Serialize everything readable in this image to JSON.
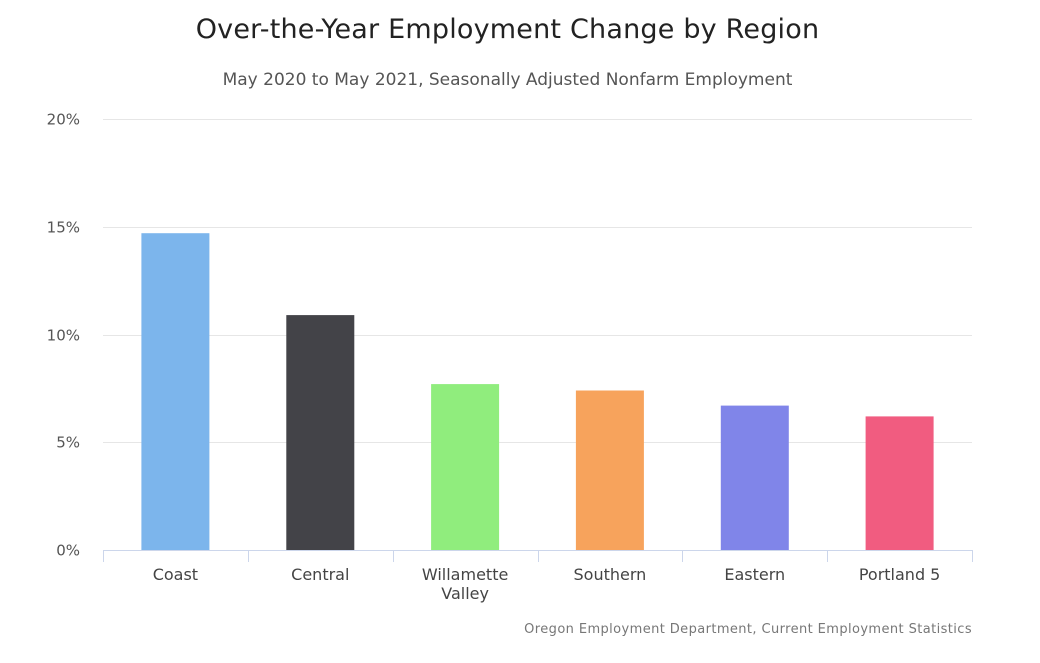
{
  "chart_data": {
    "type": "bar",
    "title": "Over-the-Year Employment Change by Region",
    "subtitle": "May 2020 to May 2021, Seasonally Adjusted Nonfarm Employment",
    "credit": "Oregon Employment Department, Current Employment Statistics",
    "categories": [
      "Coast",
      "Central",
      "Willamette Valley",
      "Southern",
      "Eastern",
      "Portland 5"
    ],
    "category_lines": [
      [
        "Coast"
      ],
      [
        "Central"
      ],
      [
        "Willamette",
        "Valley"
      ],
      [
        "Southern"
      ],
      [
        "Eastern"
      ],
      [
        "Portland 5"
      ]
    ],
    "values": [
      14.7,
      10.9,
      7.7,
      7.4,
      6.7,
      6.2
    ],
    "colors": [
      "#7cb5ec",
      "#434348",
      "#90ed7d",
      "#f7a35c",
      "#8085e9",
      "#f15c80"
    ],
    "ylim": [
      0,
      20
    ],
    "yticks": [
      0,
      5,
      10,
      15,
      20
    ],
    "ytick_labels": [
      "0%",
      "5%",
      "10%",
      "15%",
      "20%"
    ],
    "xlabel": "",
    "ylabel": "",
    "grid": true,
    "legend": false
  }
}
